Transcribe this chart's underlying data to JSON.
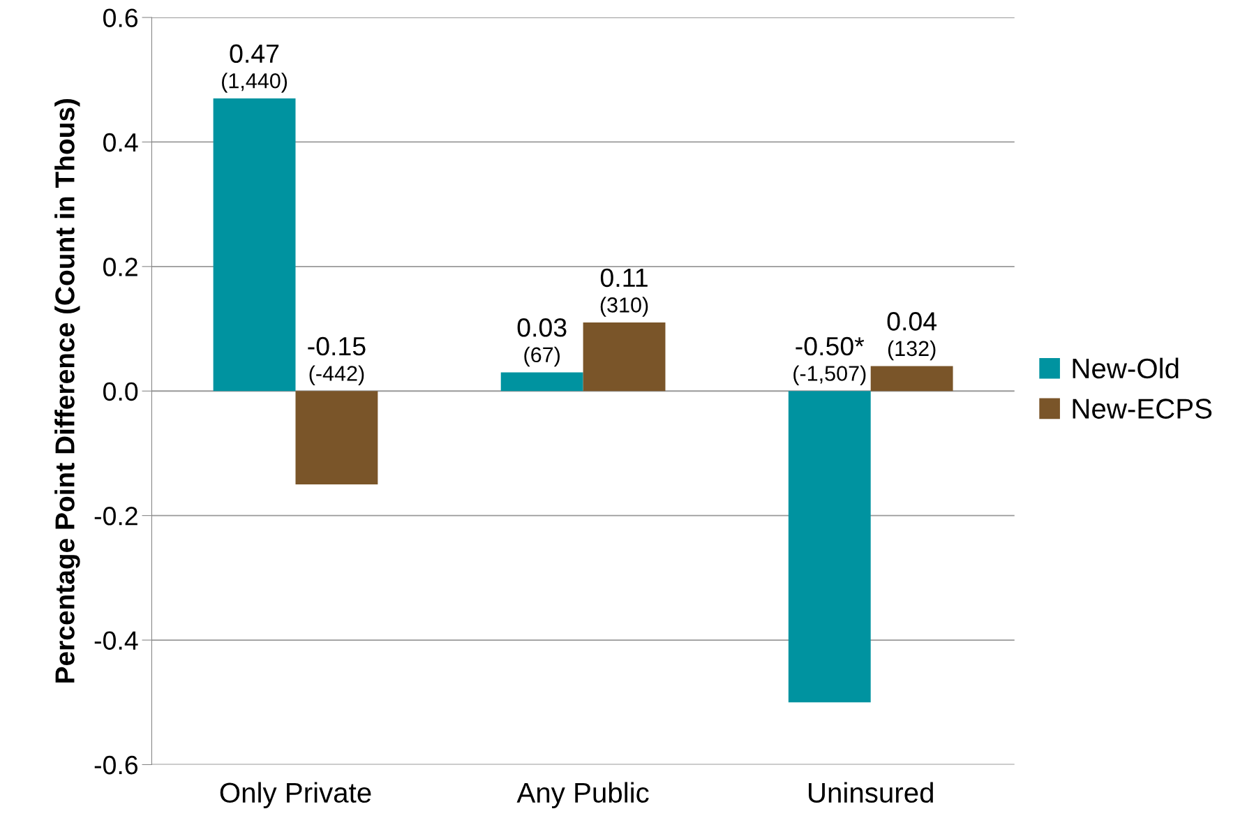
{
  "chart_data": {
    "type": "bar",
    "ylabel": "Percentage Point Difference (Count in Thous)",
    "categories": [
      "Only Private",
      "Any Public",
      "Uninsured"
    ],
    "series": [
      {
        "name": "New-Old",
        "color": "#0093a0",
        "values": [
          0.47,
          0.03,
          -0.5
        ],
        "value_labels": [
          "0.47\n(1,440)",
          "0.03\n(67)",
          "-0.50*\n(-1,507)"
        ]
      },
      {
        "name": "New-ECPS",
        "color": "#7a5529",
        "values": [
          -0.15,
          0.11,
          0.04
        ],
        "value_labels": [
          "-0.15\n(-442)",
          "0.11\n(310)",
          "0.04\n(132)"
        ]
      }
    ],
    "ylim": [
      -0.6,
      0.6
    ],
    "yticks": [
      {
        "value": -0.6,
        "label": "-0.6"
      },
      {
        "value": -0.4,
        "label": "-0.4"
      },
      {
        "value": -0.2,
        "label": "-0.2"
      },
      {
        "value": 0,
        "label": "0.0"
      },
      {
        "value": 0.2,
        "label": "0.2"
      },
      {
        "value": 0.4,
        "label": "0.4"
      },
      {
        "value": 0.6,
        "label": "0.6"
      }
    ],
    "grid": "y",
    "legend": "right"
  }
}
